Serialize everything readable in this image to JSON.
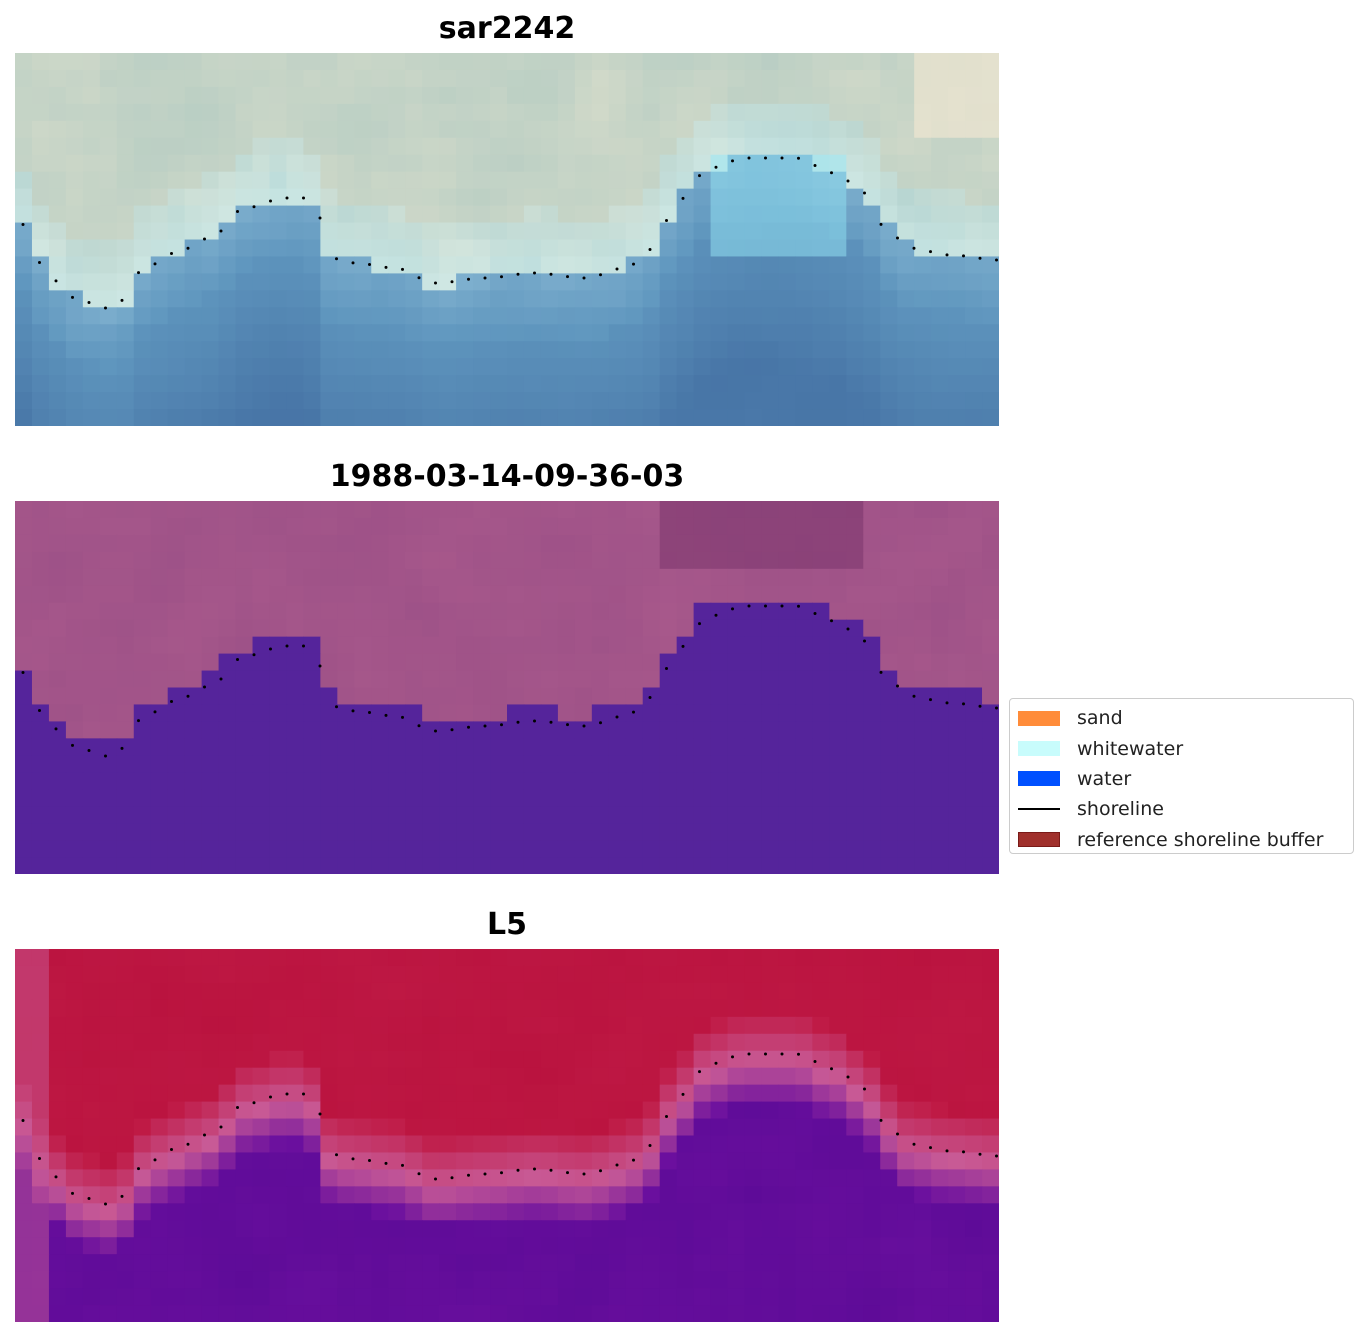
{
  "panels": [
    {
      "title": "sar2242",
      "kind": "rgb"
    },
    {
      "title": "1988-03-14-09-36-03",
      "kind": "classified"
    },
    {
      "title": "L5",
      "kind": "index"
    }
  ],
  "legend": {
    "items": [
      {
        "label": "sand",
        "type": "patch",
        "color": "#ff8c3a"
      },
      {
        "label": "whitewater",
        "type": "patch",
        "color": "#c8fcfc"
      },
      {
        "label": "water",
        "type": "patch",
        "color": "#0050ff"
      },
      {
        "label": "shoreline",
        "type": "line",
        "color": "#000000"
      },
      {
        "label": "reference shoreline buffer",
        "type": "patch",
        "color": "#a0302c",
        "edge": "#7a1a18"
      }
    ]
  },
  "colors": {
    "classified_land": "#9a4f86",
    "classified_water": "#55249b",
    "index_high": "#bf1a45",
    "index_low": "#6a0f9e"
  }
}
